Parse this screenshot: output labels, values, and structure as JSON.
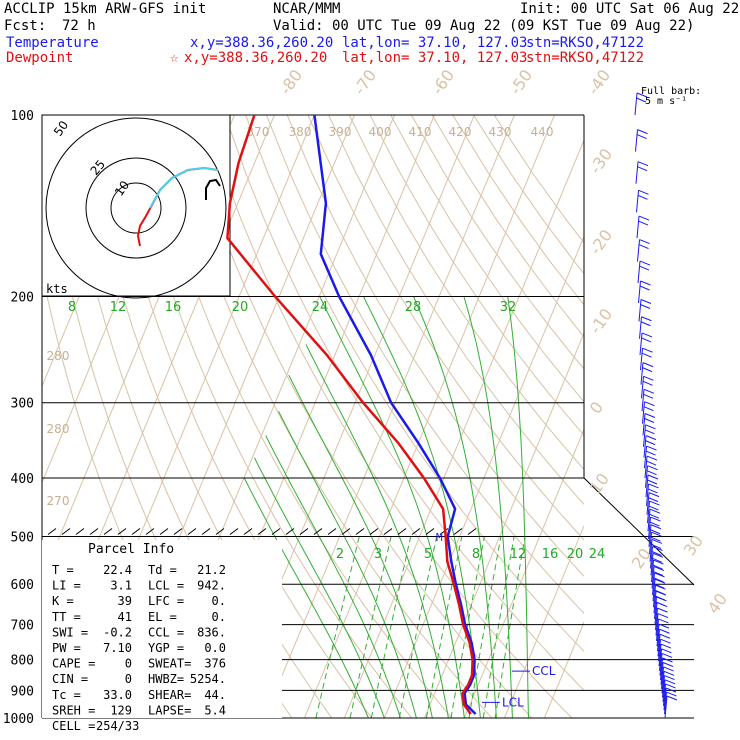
{
  "header": {
    "model": "ACCLIP 15km ARW-GFS init",
    "org": "NCAR/MMM",
    "init": "Init: 00 UTC Sat 06 Aug 22",
    "fcst_label": "Fcst:",
    "fcst_value": "72 h",
    "valid": "Valid: 00 UTC Tue 09 Aug 22 (09 KST Tue 09 Aug 22)",
    "temp_label": "Temperature",
    "temp_xy": "x,y=388.36,260.20",
    "temp_latlon": "lat,lon= 37.10, 127.03",
    "temp_stn": "stn=RKSO,47122",
    "dew_label": "Dewpoint",
    "dew_star": "☆",
    "dew_xy": "x,y=388.36,260.20",
    "dew_latlon": "lat,lon= 37.10, 127.03",
    "dew_stn": "stn=RKSO,47122",
    "barb_title": "Full barb:",
    "barb_units": "5 m s⁻¹"
  },
  "hodograph": {
    "units_label": "kts",
    "rings": [
      "10",
      "25",
      "50"
    ]
  },
  "parcel_info": {
    "title": "Parcel Info",
    "rows": [
      [
        "T    =",
        "22.4",
        "Td  =",
        "21.2"
      ],
      [
        "LI   =",
        "3.1",
        "LCL =",
        "942."
      ],
      [
        "K    =",
        "39",
        "LFC =",
        "0."
      ],
      [
        "TT   =",
        "41",
        "EL  =",
        "0."
      ],
      [
        "SWI  =",
        "-0.2",
        "CCL =",
        "836."
      ],
      [
        "PW   =",
        "7.10",
        "YGP =",
        "0.0"
      ],
      [
        "CAPE =",
        "0",
        "SWEAT=",
        "376"
      ],
      [
        "CIN  =",
        "0",
        "HWBZ=",
        "5254."
      ],
      [
        "Tc   =",
        "33.0",
        "SHEAR=",
        "44."
      ],
      [
        "SREH =",
        "129",
        "LAPSE=",
        "5.4"
      ],
      [
        "CELL =",
        "254/33",
        "",
        ""
      ]
    ]
  },
  "chart_data": {
    "type": "line",
    "title": "",
    "ylabel": "",
    "y_scale": "log-pressure",
    "ylim": [
      1000,
      100
    ],
    "pressure_ticks": [
      "100",
      "200",
      "300",
      "400",
      "500",
      "600",
      "700",
      "800",
      "900",
      "1000"
    ],
    "mixing_ratio_labels_upper": [
      "8",
      "12",
      "16",
      "20",
      "24",
      "28",
      "32"
    ],
    "mixing_ratio_labels_lower": [
      "2",
      "3",
      "5",
      "8",
      "12",
      "16",
      "20",
      "24"
    ],
    "theta_labels": [
      "370",
      "380",
      "390",
      "400",
      "410",
      "420",
      "430",
      "440"
    ],
    "theta_labels_left": [
      "280",
      "280",
      "270"
    ],
    "isotherm_labels": [
      "-80",
      "-70",
      "-60",
      "-50",
      "-40",
      "-30",
      "-20",
      "-10",
      "0",
      "10",
      "20",
      "30",
      "40"
    ],
    "markers": {
      "ccl": "CCL",
      "lcl": "LCL",
      "m": "M"
    },
    "series": [
      {
        "name": "Temperature",
        "color": "#1a1aee",
        "points": [
          [
            100,
            -80
          ],
          [
            140,
            -68
          ],
          [
            170,
            -64
          ],
          [
            200,
            -55
          ],
          [
            250,
            -41
          ],
          [
            300,
            -31
          ],
          [
            350,
            -20
          ],
          [
            400,
            -11
          ],
          [
            450,
            -4
          ],
          [
            500,
            -3
          ],
          [
            550,
            0.5
          ],
          [
            600,
            4
          ],
          [
            650,
            7.5
          ],
          [
            700,
            10.5
          ],
          [
            750,
            14
          ],
          [
            800,
            16.5
          ],
          [
            850,
            18
          ],
          [
            880,
            18
          ],
          [
            910,
            17.5
          ],
          [
            950,
            19
          ],
          [
            985,
            22.4
          ]
        ]
      },
      {
        "name": "Dewpoint",
        "color": "#e01010",
        "points": [
          [
            100,
            -95
          ],
          [
            120,
            -94
          ],
          [
            140,
            -92
          ],
          [
            160,
            -89
          ],
          [
            200,
            -71
          ],
          [
            250,
            -52
          ],
          [
            300,
            -38
          ],
          [
            350,
            -25
          ],
          [
            400,
            -15
          ],
          [
            450,
            -7
          ],
          [
            500,
            -3.5
          ],
          [
            550,
            -0.5
          ],
          [
            600,
            3.5
          ],
          [
            650,
            7
          ],
          [
            700,
            10
          ],
          [
            750,
            13.5
          ],
          [
            800,
            16
          ],
          [
            850,
            17.5
          ],
          [
            880,
            17.5
          ],
          [
            910,
            17
          ],
          [
            950,
            18.5
          ],
          [
            985,
            21.2
          ]
        ]
      }
    ],
    "hodograph_points": [
      [
        0,
        0
      ],
      [
        0.5,
        3
      ],
      [
        1.5,
        7
      ],
      [
        4,
        11
      ],
      [
        9,
        14
      ],
      [
        14,
        16
      ],
      [
        20,
        18
      ],
      [
        26,
        18
      ]
    ],
    "wind_barbs_note": "wind barbs right column"
  }
}
